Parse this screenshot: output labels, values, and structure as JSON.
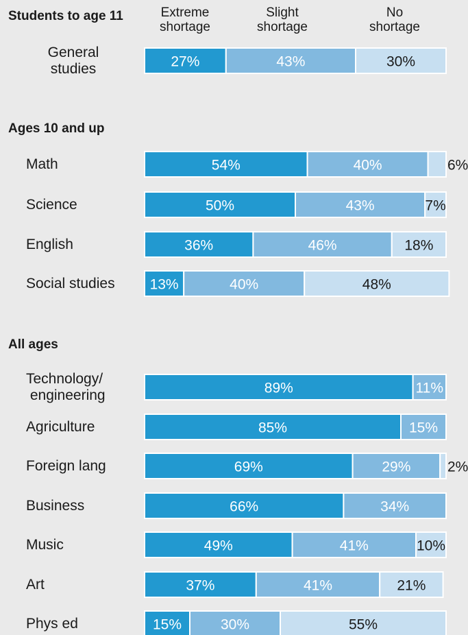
{
  "legend": [
    "Extreme\nshortage",
    "Slight\nshortage",
    "No\nshortage"
  ],
  "colors": {
    "extreme": "#2299d0",
    "slight": "#82b9df",
    "none": "#c7dff1",
    "text_on_dark": "#ffffff",
    "text_on_light": "#1a1a1a",
    "separator": "#ffffff"
  },
  "chart_data": {
    "type": "bar",
    "stacked": true,
    "orientation": "horizontal",
    "series_names": [
      "Extreme shortage",
      "Slight shortage",
      "No shortage"
    ],
    "groups": [
      {
        "title": "Students to age 11",
        "rows": [
          {
            "label": "General\nstudies",
            "values": [
              27,
              43,
              30
            ]
          }
        ]
      },
      {
        "title": "Ages 10 and up",
        "rows": [
          {
            "label": "Math",
            "values": [
              54,
              40,
              6
            ]
          },
          {
            "label": "Science",
            "values": [
              50,
              43,
              7
            ]
          },
          {
            "label": "English",
            "values": [
              36,
              46,
              18
            ]
          },
          {
            "label": "Social studies",
            "values": [
              13,
              40,
              48
            ]
          }
        ]
      },
      {
        "title": "All ages",
        "rows": [
          {
            "label": "Technology/\n engineering",
            "values": [
              89,
              11,
              0
            ]
          },
          {
            "label": "Agriculture",
            "values": [
              85,
              15,
              0
            ]
          },
          {
            "label": "Foreign lang",
            "values": [
              69,
              29,
              2
            ]
          },
          {
            "label": "Business",
            "values": [
              66,
              34,
              0
            ]
          },
          {
            "label": "Music",
            "values": [
              49,
              41,
              10
            ]
          },
          {
            "label": "Art",
            "values": [
              37,
              41,
              21
            ]
          },
          {
            "label": "Phys ed",
            "values": [
              15,
              30,
              55
            ]
          }
        ]
      }
    ]
  }
}
